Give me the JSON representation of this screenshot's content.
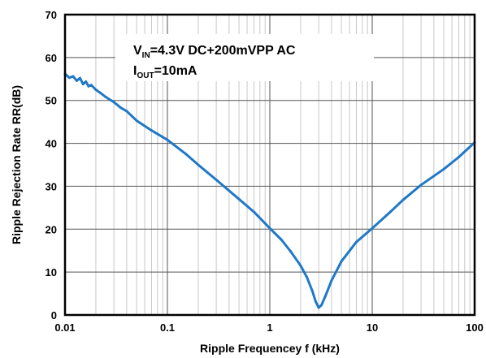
{
  "chart_data": {
    "type": "line",
    "xlabel": "Ripple Frequencey f (kHz)",
    "ylabel": "Ripple Rejection Rate RR(dB)",
    "x_scale": "log",
    "xlim": [
      0.01,
      100
    ],
    "ylim": [
      0,
      70
    ],
    "x_ticks": [
      "0.01",
      "0.1",
      "1",
      "10",
      "100"
    ],
    "y_ticks": [
      "0",
      "10",
      "20",
      "30",
      "40",
      "50",
      "60",
      "70"
    ],
    "grid": true,
    "annotation": {
      "line1_main": "V",
      "line1_sub": "IN",
      "line1_rest": "=4.3V DC+200mVPP AC",
      "line2_main": "I",
      "line2_sub": "OUT",
      "line2_rest": "=10mA"
    },
    "series": [
      {
        "color": "#1f78c8",
        "x": [
          0.01,
          0.011,
          0.012,
          0.013,
          0.014,
          0.015,
          0.016,
          0.017,
          0.018,
          0.02,
          0.022,
          0.025,
          0.03,
          0.035,
          0.04,
          0.05,
          0.07,
          0.1,
          0.15,
          0.2,
          0.3,
          0.5,
          0.7,
          1.0,
          1.3,
          1.6,
          2.0,
          2.3,
          2.6,
          2.8,
          3.0,
          3.2,
          3.5,
          4.0,
          5.0,
          7.0,
          10,
          15,
          20,
          30,
          50,
          70,
          100
        ],
        "y": [
          56.2,
          55.3,
          55.6,
          54.6,
          55.2,
          53.8,
          54.4,
          53.3,
          53.6,
          52.5,
          51.8,
          50.8,
          49.6,
          48.3,
          47.5,
          45.3,
          43.0,
          40.8,
          37.6,
          35.0,
          31.5,
          27.0,
          24.0,
          20.2,
          17.5,
          14.8,
          11.5,
          8.8,
          5.6,
          3.2,
          1.7,
          2.3,
          4.5,
          8.0,
          12.5,
          17.0,
          20.2,
          24.0,
          26.8,
          30.3,
          34.0,
          36.8,
          40.2
        ]
      }
    ]
  }
}
